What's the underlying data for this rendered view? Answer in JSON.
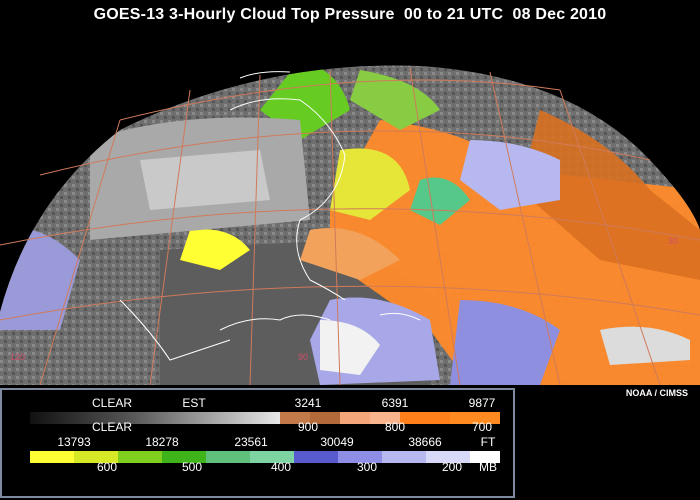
{
  "title": "GOES-13 3-Hourly Cloud Top Pressure  00 to 21 UTC  08 Dec 2010",
  "credit": "NOAA / CIMSS",
  "map_labels": {
    "lon_120": "120",
    "lon_90": "90",
    "lat_30": "30"
  },
  "legend": {
    "row1_top": [
      "CLEAR",
      "EST",
      "3241",
      "6391",
      "9877"
    ],
    "row1_bottom": [
      "CLEAR",
      "900",
      "800",
      "700"
    ],
    "row2_top": [
      "13793",
      "18278",
      "23561",
      "30049",
      "38666",
      "FT"
    ],
    "row2_bottom": [
      "600",
      "500",
      "400",
      "300",
      "200",
      "MB"
    ]
  },
  "colors": {
    "clear_gray_dark": "#1a1a1a",
    "clear_gray_light": "#d8d8d8",
    "orange_900": "#c27a4a",
    "orange_800": "#f4a57a",
    "orange_700": "#ff7f1a",
    "yellow_600": "#ffff33",
    "green_500": "#66cc22",
    "teal_400": "#55c88a",
    "blue_300": "#6d6dd8",
    "lavender_200": "#b8b8f0",
    "white_top": "#ffffff"
  }
}
